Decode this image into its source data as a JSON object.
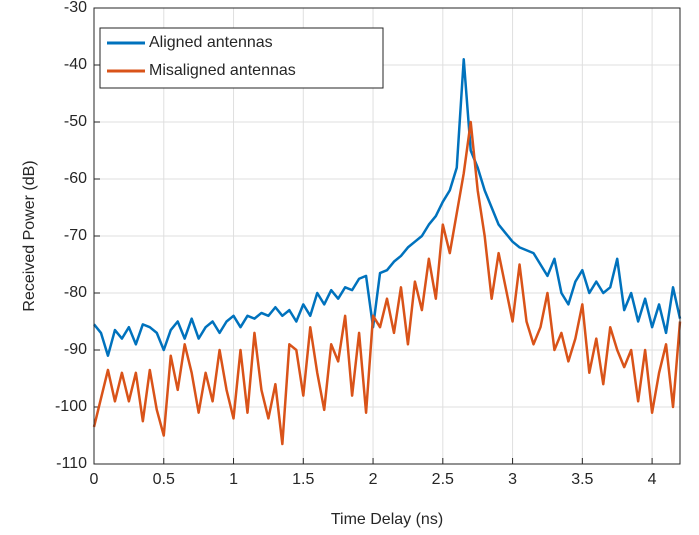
{
  "chart_data": {
    "type": "line",
    "xlabel": "Time Delay (ns)",
    "ylabel": "Received Power (dB)",
    "x": [
      0,
      0.05,
      0.1,
      0.15,
      0.2,
      0.25,
      0.3,
      0.35,
      0.4,
      0.45,
      0.5,
      0.55,
      0.6,
      0.65,
      0.7,
      0.75,
      0.8,
      0.85,
      0.9,
      0.95,
      1,
      1.05,
      1.1,
      1.15,
      1.2,
      1.25,
      1.3,
      1.35,
      1.4,
      1.45,
      1.5,
      1.55,
      1.6,
      1.65,
      1.7,
      1.75,
      1.8,
      1.85,
      1.9,
      1.95,
      2,
      2.05,
      2.1,
      2.15,
      2.2,
      2.25,
      2.3,
      2.35,
      2.4,
      2.45,
      2.5,
      2.55,
      2.6,
      2.65,
      2.7,
      2.75,
      2.8,
      2.85,
      2.9,
      2.95,
      3,
      3.05,
      3.1,
      3.15,
      3.2,
      3.25,
      3.3,
      3.35,
      3.4,
      3.45,
      3.5,
      3.55,
      3.6,
      3.65,
      3.7,
      3.75,
      3.8,
      3.85,
      3.9,
      3.95,
      4,
      4.05,
      4.1,
      4.15,
      4.2
    ],
    "series": [
      {
        "name": "Aligned antennas",
        "color": "#0072bd",
        "values": [
          -85.5,
          -87,
          -91,
          -86.5,
          -88,
          -86,
          -89,
          -85.5,
          -86,
          -87,
          -90,
          -86.5,
          -85,
          -88,
          -84.5,
          -88,
          -86,
          -85,
          -87,
          -85,
          -84,
          -86,
          -84,
          -84.5,
          -83.5,
          -84,
          -82.5,
          -84,
          -83,
          -85,
          -82,
          -84,
          -80,
          -82,
          -79.5,
          -81,
          -79,
          -79.5,
          -77.5,
          -77,
          -86,
          -76.5,
          -76,
          -74.5,
          -73.5,
          -72,
          -71,
          -70,
          -68,
          -66.5,
          -64,
          -62,
          -58,
          -39,
          -55,
          -58,
          -62,
          -65,
          -68,
          -69.5,
          -71,
          -72,
          -72.5,
          -73,
          -75,
          -77,
          -74,
          -80,
          -82,
          -78,
          -76,
          -80,
          -78,
          -80,
          -79,
          -74,
          -83,
          -80,
          -85,
          -81,
          -86,
          -82,
          -87,
          -79,
          -84.5
        ]
      },
      {
        "name": "Misaligned antennas",
        "color": "#d95319",
        "values": [
          -103.5,
          -98.5,
          -93.5,
          -99,
          -94,
          -99,
          -94,
          -102.5,
          -93.5,
          -100.5,
          -105,
          -91,
          -97,
          -89,
          -94,
          -101,
          -94,
          -99,
          -90,
          -97,
          -102,
          -90,
          -101,
          -87,
          -97,
          -102,
          -96,
          -106.5,
          -89,
          -90,
          -98,
          -86,
          -94,
          -100.5,
          -89,
          -92,
          -84,
          -98,
          -87,
          -101,
          -84,
          -86,
          -81,
          -87,
          -79,
          -89,
          -78,
          -83,
          -74,
          -81,
          -68,
          -73,
          -66,
          -59,
          -50,
          -62,
          -70,
          -81,
          -73,
          -79,
          -85,
          -75,
          -85,
          -89,
          -86,
          -80,
          -90,
          -87,
          -92,
          -88,
          -82,
          -94,
          -88,
          -96,
          -86,
          -90,
          -93,
          -90,
          -99,
          -90,
          -101,
          -94,
          -89,
          -100,
          -85
        ]
      }
    ],
    "xlim": [
      0,
      4.2
    ],
    "ylim": [
      -110,
      -30
    ],
    "xticks": [
      0,
      0.5,
      1,
      1.5,
      2,
      2.5,
      3,
      3.5,
      4
    ],
    "yticks": [
      -110,
      -100,
      -90,
      -80,
      -70,
      -60,
      -50,
      -40,
      -30
    ],
    "grid": true,
    "legend": "upper left"
  }
}
